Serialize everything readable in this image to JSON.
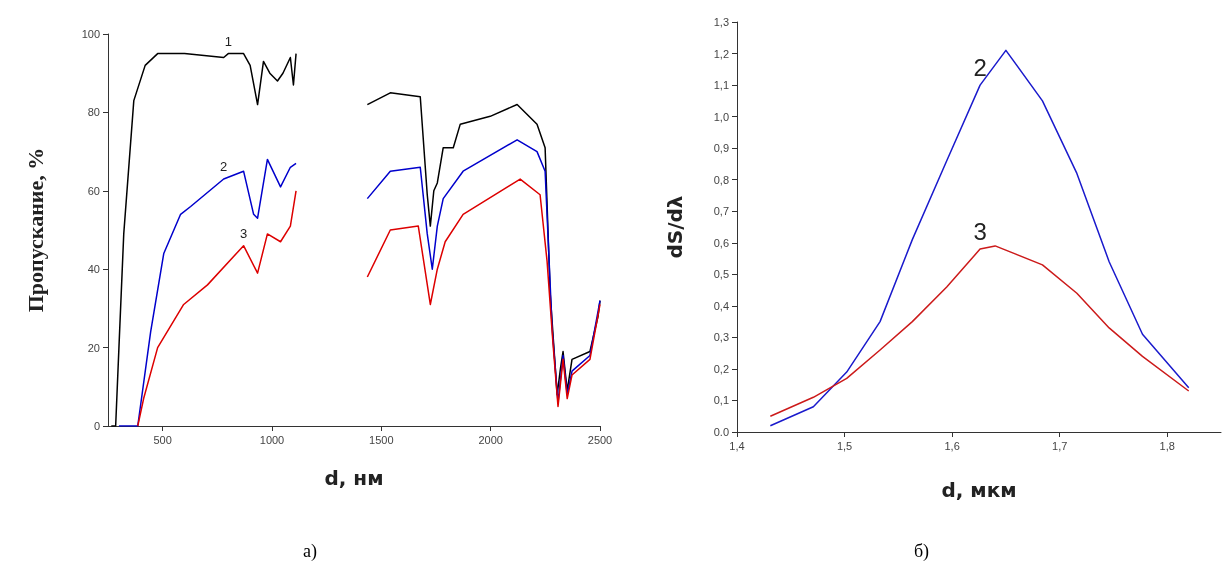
{
  "chart_data": [
    {
      "type": "line",
      "xlabel": "d, нм",
      "ylabel": "Пропускание, %",
      "xlim": [
        250,
        2500
      ],
      "ylim": [
        0,
        100
      ],
      "xticks": [
        500,
        1000,
        1500,
        2000,
        2500
      ],
      "yticks": [
        0,
        20,
        40,
        60,
        80,
        100
      ],
      "grid": false,
      "marker": "none",
      "line_style": "solid",
      "annotations": [
        "а)"
      ],
      "series": [
        {
          "name": "1",
          "color": "#000000",
          "x": [
            265,
            285,
            300,
            322,
            368,
            420,
            477,
            600,
            779,
            800,
            870,
            900,
            934,
            961,
            990,
            1025,
            1050,
            1084,
            1098,
            1110,
            1270,
            1436,
            1541,
            1678,
            1710,
            1724,
            1740,
            1756,
            1783,
            1829,
            1861,
            1998,
            2121,
            2212,
            2249,
            2272,
            2304,
            2320,
            2331,
            2350,
            2372,
            2454,
            2491,
            2500
          ],
          "values": [
            0,
            0,
            20,
            49,
            83,
            92,
            95,
            95,
            94,
            95,
            95,
            92,
            82,
            93,
            90,
            88,
            90,
            94,
            87,
            95,
            null,
            82,
            85,
            84,
            59,
            51,
            60,
            62,
            71,
            71,
            77,
            79,
            82,
            77,
            71,
            34,
            8,
            15,
            19,
            9,
            17,
            19,
            28,
            32
          ]
        },
        {
          "name": "2",
          "color": "#0000cc",
          "x": [
            300,
            386,
            445,
            505,
            582,
            628,
            779,
            870,
            916,
            934,
            979,
            1039,
            1084,
            1110,
            1270,
            1436,
            1541,
            1678,
            1710,
            1733,
            1756,
            1783,
            1874,
            2121,
            2212,
            2249,
            2281,
            2308,
            2331,
            2350,
            2372,
            2454,
            2500
          ],
          "values": [
            0,
            0,
            24,
            44,
            54,
            56,
            63,
            65,
            54,
            53,
            68,
            61,
            66,
            67,
            null,
            58,
            65,
            66,
            49,
            40,
            51,
            58,
            65,
            73,
            70,
            65,
            25,
            6,
            18,
            8,
            14,
            18,
            32
          ]
        },
        {
          "name": "3",
          "color": "#dd0000",
          "x": [
            386,
            413,
            477,
            596,
            705,
            870,
            934,
            979,
            1039,
            1084,
            1110,
            1270,
            1436,
            1541,
            1669,
            1724,
            1756,
            1792,
            1874,
            2135,
            2226,
            2258,
            2285,
            2308,
            2331,
            2350,
            2372,
            2454,
            2500
          ],
          "values": [
            0,
            7,
            20,
            31,
            36,
            46,
            39,
            49,
            47,
            51,
            60,
            null,
            38,
            50,
            51,
            31,
            40,
            47,
            54,
            63,
            59,
            42,
            21,
            5,
            17,
            7,
            13,
            17,
            31
          ]
        }
      ]
    },
    {
      "type": "line",
      "xlabel": "d, мкм",
      "ylabel": "dS/dλ",
      "xlim": [
        1.4,
        1.85
      ],
      "ylim": [
        0,
        1.3
      ],
      "xticks": [
        {
          "value": 1.4,
          "label": "1,4"
        },
        {
          "value": 1.5,
          "label": "1,5"
        },
        {
          "value": 1.6,
          "label": "1,6"
        },
        {
          "value": 1.7,
          "label": "1,7"
        },
        {
          "value": 1.8,
          "label": "1,8"
        }
      ],
      "yticks": [
        {
          "value": 0,
          "label": "0.0"
        },
        {
          "value": 0.1,
          "label": "0,1"
        },
        {
          "value": 0.2,
          "label": "0,2"
        },
        {
          "value": 0.3,
          "label": "0,3"
        },
        {
          "value": 0.4,
          "label": "0,4"
        },
        {
          "value": 0.5,
          "label": "0,5"
        },
        {
          "value": 0.6,
          "label": "0,6"
        },
        {
          "value": 0.7,
          "label": "0,7"
        },
        {
          "value": 0.8,
          "label": "0,8"
        },
        {
          "value": 0.9,
          "label": "0,9"
        },
        {
          "value": 1.0,
          "label": "1,0"
        },
        {
          "value": 1.1,
          "label": "1,1"
        },
        {
          "value": 1.2,
          "label": "1,2"
        },
        {
          "value": 1.3,
          "label": "1,3"
        }
      ],
      "grid": false,
      "marker": "none",
      "line_style": "solid",
      "annotations": [
        "б)"
      ],
      "series": [
        {
          "name": "2",
          "color": "#1a1acc",
          "x": [
            1.431,
            1.471,
            1.502,
            1.533,
            1.563,
            1.595,
            1.626,
            1.65,
            1.684,
            1.716,
            1.746,
            1.777,
            1.82
          ],
          "values": [
            0.02,
            0.08,
            0.19,
            0.35,
            0.61,
            0.86,
            1.1,
            1.21,
            1.05,
            0.82,
            0.54,
            0.31,
            0.14
          ]
        },
        {
          "name": "3",
          "color": "#cc1a1a",
          "x": [
            1.431,
            1.471,
            1.502,
            1.533,
            1.563,
            1.595,
            1.626,
            1.64,
            1.684,
            1.716,
            1.746,
            1.777,
            1.82
          ],
          "values": [
            0.05,
            0.11,
            0.17,
            0.26,
            0.35,
            0.46,
            0.58,
            0.59,
            0.53,
            0.44,
            0.33,
            0.24,
            0.13
          ]
        }
      ]
    }
  ]
}
